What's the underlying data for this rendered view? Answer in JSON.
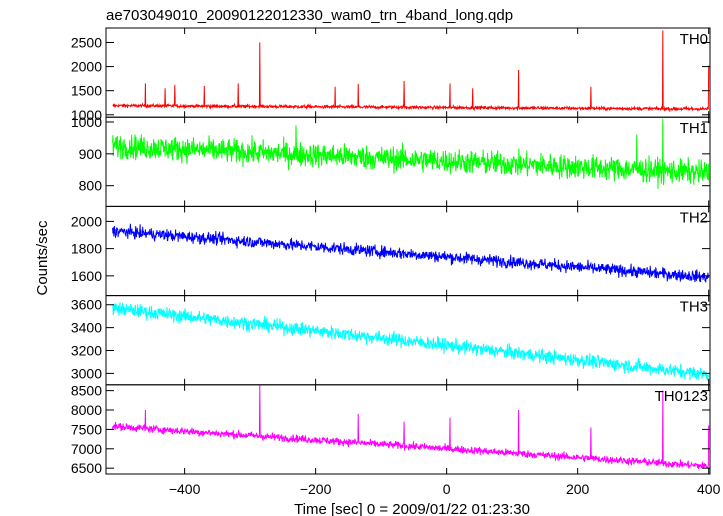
{
  "title": "ae703049010_20090122012330_wam0_trn_4band_long.qdp",
  "ylabel": "Counts/sec",
  "xlabel": "Time [sec] 0 = 2009/01/22 01:23:30",
  "chart_data": {
    "type": "line",
    "title": "ae703049010_20090122012330_wam0_trn_4band_long.qdp",
    "xlabel": "Time [sec] 0 = 2009/01/22 01:23:30",
    "ylabel": "Counts/sec",
    "xlim": [
      -520,
      402
    ],
    "x_ticks": [
      -400,
      -200,
      0,
      200,
      400
    ],
    "x_tick_labels": [
      "−400",
      "−200",
      "0",
      "200",
      "400"
    ],
    "grid": false,
    "panels": [
      {
        "name": "TH0",
        "color": "#ff0000",
        "ylim": [
          950,
          2800
        ],
        "y_ticks": [
          1000,
          1500,
          2000,
          2500
        ],
        "y_tick_labels": [
          "1000",
          "1500",
          "2000",
          "2500"
        ],
        "trend": {
          "x": [
            -510,
            400
          ],
          "y": [
            1190,
            1120
          ]
        },
        "noise": 30,
        "spikes": [
          {
            "x": -460,
            "y": 1650
          },
          {
            "x": -430,
            "y": 1550
          },
          {
            "x": -415,
            "y": 1620
          },
          {
            "x": -370,
            "y": 1600
          },
          {
            "x": -318,
            "y": 1650
          },
          {
            "x": -285,
            "y": 2500
          },
          {
            "x": -170,
            "y": 1580
          },
          {
            "x": -135,
            "y": 1640
          },
          {
            "x": -65,
            "y": 1700
          },
          {
            "x": 5,
            "y": 1650
          },
          {
            "x": 40,
            "y": 1550
          },
          {
            "x": 110,
            "y": 1930
          },
          {
            "x": 220,
            "y": 1580
          },
          {
            "x": 330,
            "y": 2750
          },
          {
            "x": 400,
            "y": 2020
          }
        ]
      },
      {
        "name": "TH1",
        "color": "#00ff00",
        "ylim": [
          735,
          1015
        ],
        "y_ticks": [
          800,
          900,
          1000
        ],
        "y_tick_labels": [
          "800",
          "900",
          "1000"
        ],
        "trend": {
          "x": [
            -510,
            400
          ],
          "y": [
            925,
            840
          ]
        },
        "noise": 35,
        "spikes": [
          {
            "x": -230,
            "y": 990
          },
          {
            "x": 290,
            "y": 960
          },
          {
            "x": 330,
            "y": 1010
          }
        ]
      },
      {
        "name": "TH2",
        "color": "#0000ff",
        "ylim": [
          1455,
          2110
        ],
        "y_ticks": [
          1600,
          1800,
          2000
        ],
        "y_tick_labels": [
          "1600",
          "1800",
          "2000"
        ],
        "trend": {
          "x": [
            -510,
            400
          ],
          "y": [
            1930,
            1590
          ]
        },
        "noise": 40,
        "spikes": []
      },
      {
        "name": "TH3",
        "color": "#00ffff",
        "ylim": [
          2900,
          3680
        ],
        "y_ticks": [
          3000,
          3200,
          3400,
          3600
        ],
        "y_tick_labels": [
          "3000",
          "3200",
          "3400",
          "3600"
        ],
        "trend": {
          "x": [
            -510,
            400
          ],
          "y": [
            3570,
            2990
          ]
        },
        "noise": 55,
        "spikes": []
      },
      {
        "name": "TH0123",
        "color": "#ff00ff",
        "ylim": [
          6350,
          8650
        ],
        "y_ticks": [
          6500,
          7000,
          7500,
          8000,
          8500
        ],
        "y_tick_labels": [
          "6500",
          "7000",
          "7500",
          "8000",
          "8500"
        ],
        "trend": {
          "x": [
            -510,
            400
          ],
          "y": [
            7580,
            6550
          ]
        },
        "noise": 90,
        "spikes": [
          {
            "x": -460,
            "y": 8000
          },
          {
            "x": -285,
            "y": 8650
          },
          {
            "x": -135,
            "y": 7900
          },
          {
            "x": -65,
            "y": 7700
          },
          {
            "x": 5,
            "y": 7800
          },
          {
            "x": 110,
            "y": 8000
          },
          {
            "x": 220,
            "y": 7550
          },
          {
            "x": 330,
            "y": 8500
          },
          {
            "x": 400,
            "y": 7600
          }
        ]
      }
    ]
  }
}
